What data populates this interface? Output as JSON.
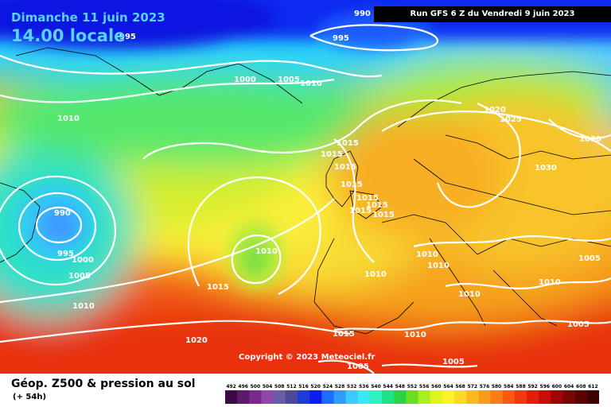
{
  "header": {
    "date": "Dimanche 11 juin 2023",
    "time": "14.00 locale",
    "run": "Run GFS 6 Z du Vendredi 9 juin 2023"
  },
  "copyright": "Copyright © 2023 Meteociel.fr",
  "footer": {
    "title": "Géop. Z500 & pression au sol",
    "subtitle": "(+ 54h)"
  },
  "isobar_labels": [
    "990",
    "995",
    "995",
    "1000",
    "1005",
    "1010",
    "1010",
    "1015",
    "1015",
    "1015",
    "1015",
    "1015",
    "1015",
    "1015",
    "1015",
    "1020",
    "1025",
    "1030",
    "1030",
    "990",
    "995",
    "1000",
    "1005",
    "1010",
    "1010",
    "1015",
    "1020",
    "1010",
    "1010",
    "1010",
    "1005",
    "1010",
    "1010",
    "1005",
    "1015",
    "1010",
    "1005",
    "1005"
  ],
  "legend": {
    "values": [
      "492",
      "496",
      "500",
      "504",
      "508",
      "512",
      "516",
      "520",
      "524",
      "528",
      "532",
      "536",
      "540",
      "544",
      "548",
      "552",
      "556",
      "560",
      "564",
      "568",
      "572",
      "576",
      "580",
      "584",
      "588",
      "592",
      "596",
      "600",
      "604",
      "608",
      "612"
    ],
    "colors": [
      "#3c0b46",
      "#5c1a6b",
      "#7a2a8e",
      "#8f48a8",
      "#6a5ca8",
      "#4a4a9c",
      "#1e3ad8",
      "#0a1ef0",
      "#1e6cff",
      "#2e9cff",
      "#3ccaff",
      "#38e8f6",
      "#2ef0c0",
      "#20e088",
      "#2ad244",
      "#66e020",
      "#a8ee20",
      "#dcf520",
      "#fcf22c",
      "#fcd82a",
      "#fcba22",
      "#fc9a1a",
      "#fc7c14",
      "#f85a12",
      "#f03a0e",
      "#e01e0a",
      "#c80c08",
      "#a00404",
      "#7c0404",
      "#5c0204",
      "#3c0004"
    ]
  }
}
